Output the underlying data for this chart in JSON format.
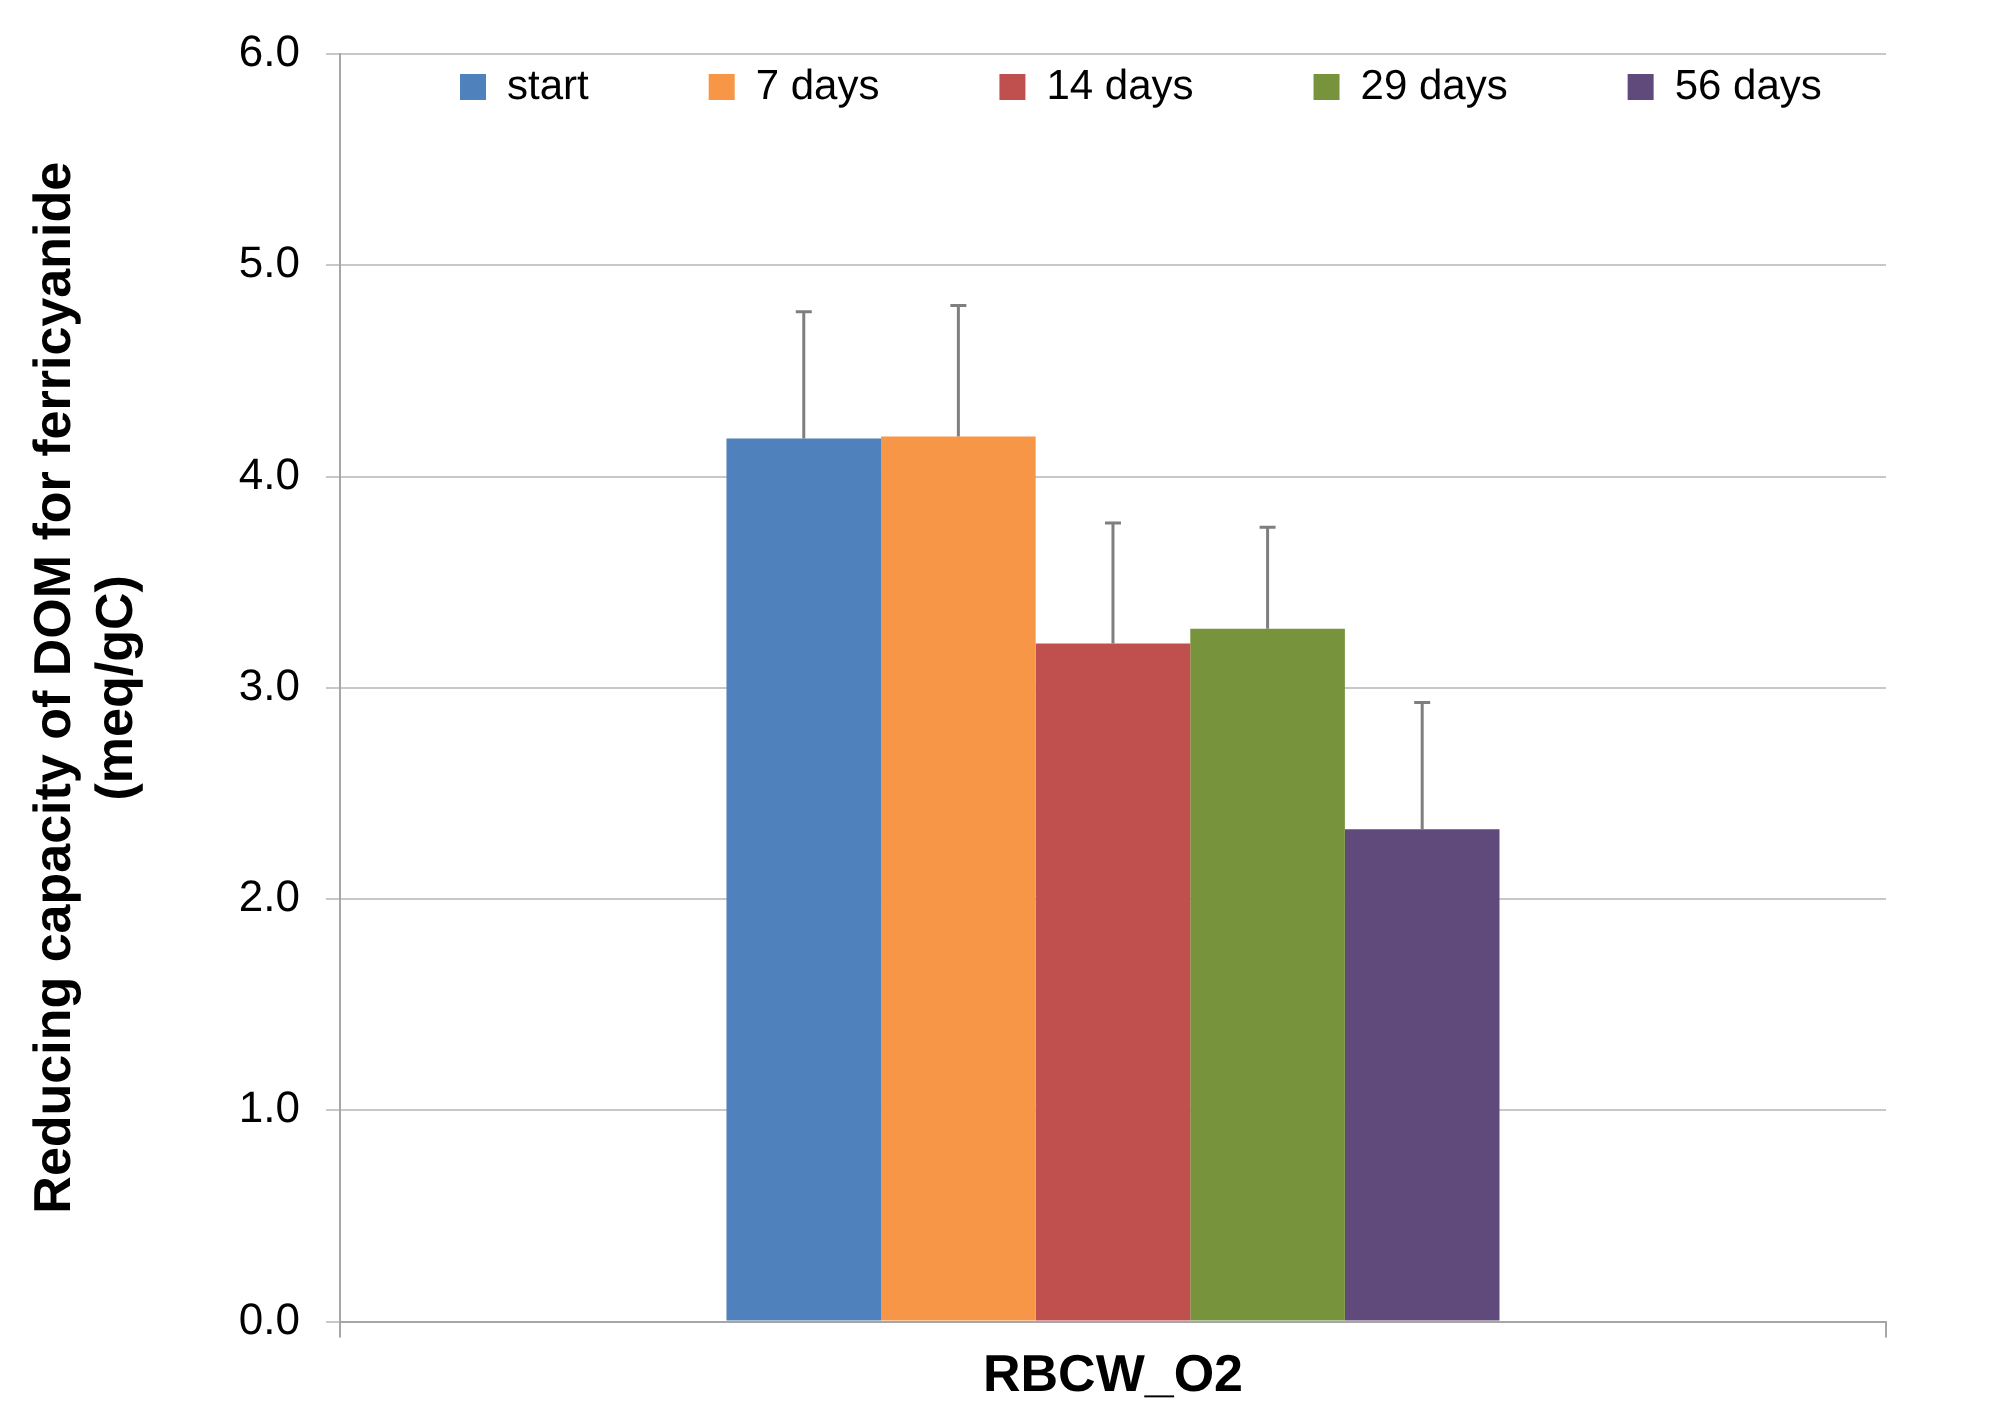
{
  "chart_data": {
    "type": "bar",
    "categories": [
      "RBCW_O2"
    ],
    "series": [
      {
        "name": "start",
        "color": "#4f81bd",
        "values": [
          4.18
        ],
        "errors": [
          [
            4.18,
            4.78
          ]
        ]
      },
      {
        "name": "7 days",
        "color": "#f79646",
        "values": [
          4.19
        ],
        "errors": [
          [
            4.19,
            4.81
          ]
        ]
      },
      {
        "name": "14 days",
        "color": "#c0504d",
        "values": [
          3.21
        ],
        "errors": [
          [
            3.21,
            3.78
          ]
        ]
      },
      {
        "name": "29 days",
        "color": "#77933c",
        "values": [
          3.28
        ],
        "errors": [
          [
            3.28,
            3.76
          ]
        ]
      },
      {
        "name": "56 days",
        "color": "#604a7b",
        "values": [
          2.33
        ],
        "errors": [
          [
            2.33,
            2.93
          ]
        ]
      }
    ],
    "ylabel": "Reducing capacity of DOM for ferricyanide\n(meq/gC)",
    "ylim": [
      0,
      6
    ],
    "yticks": [
      {
        "value": 0,
        "label": "0.0"
      },
      {
        "value": 1,
        "label": "1.0"
      },
      {
        "value": 2,
        "label": "2.0"
      },
      {
        "value": 3,
        "label": "3.0"
      },
      {
        "value": 4,
        "label": "4.0"
      },
      {
        "value": 5,
        "label": "5.0"
      },
      {
        "value": 6,
        "label": "6.0"
      }
    ],
    "grid": "y",
    "legend": "top"
  }
}
